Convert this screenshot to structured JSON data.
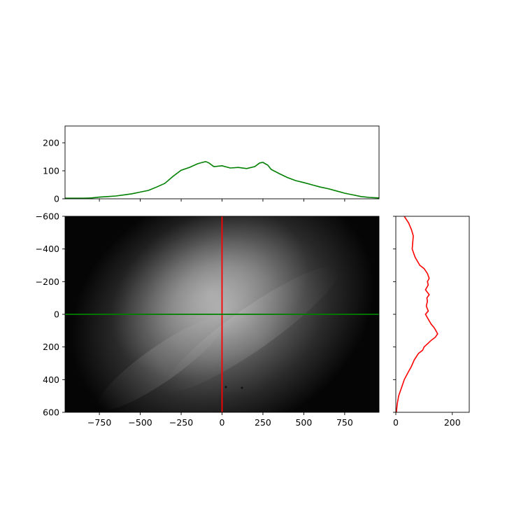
{
  "chart_data": [
    {
      "panel": "top-profile",
      "type": "line",
      "color": "#008000",
      "xlim": [
        -960,
        960
      ],
      "ylim": [
        0,
        260
      ],
      "yticks": [
        0,
        100,
        200
      ],
      "ytick_labels": [
        "0",
        "100",
        "200"
      ],
      "x": [
        -960,
        -900,
        -850,
        -800,
        -750,
        -700,
        -650,
        -600,
        -550,
        -500,
        -450,
        -400,
        -350,
        -300,
        -250,
        -200,
        -150,
        -120,
        -100,
        -80,
        -50,
        0,
        50,
        100,
        150,
        200,
        230,
        250,
        280,
        300,
        350,
        400,
        450,
        500,
        550,
        600,
        650,
        700,
        750,
        800,
        850,
        900,
        960
      ],
      "y": [
        2,
        2,
        2,
        3,
        6,
        8,
        10,
        14,
        18,
        24,
        30,
        42,
        55,
        80,
        102,
        112,
        125,
        130,
        133,
        128,
        115,
        118,
        110,
        112,
        108,
        115,
        128,
        130,
        120,
        105,
        90,
        76,
        65,
        58,
        50,
        42,
        36,
        28,
        20,
        14,
        8,
        5,
        3
      ]
    },
    {
      "panel": "image",
      "type": "heatmap",
      "colormap": "gray",
      "xlim": [
        -960,
        960
      ],
      "ylim": [
        600,
        -600
      ],
      "xticks": [
        -750,
        -500,
        -250,
        0,
        250,
        500,
        750
      ],
      "xtick_labels": [
        "−750",
        "−500",
        "−250",
        "0",
        "250",
        "500",
        "750"
      ],
      "yticks": [
        -600,
        -400,
        -200,
        0,
        200,
        400,
        600
      ],
      "ytick_labels": [
        "−600",
        "−400",
        "−200",
        "0",
        "200",
        "400",
        "600"
      ],
      "vline": {
        "x": 0,
        "color": "#ff0000"
      },
      "hline": {
        "y": 0,
        "color": "#008000"
      }
    },
    {
      "panel": "right-profile",
      "type": "line",
      "color": "#ff0000",
      "xlim": [
        0,
        260
      ],
      "ylim": [
        600,
        -600
      ],
      "xticks": [
        0,
        200
      ],
      "xtick_labels": [
        "0",
        "200"
      ],
      "y": [
        -600,
        -560,
        -520,
        -480,
        -440,
        -400,
        -350,
        -300,
        -280,
        -250,
        -220,
        -200,
        -180,
        -150,
        -120,
        -100,
        -80,
        -50,
        -20,
        0,
        30,
        60,
        80,
        100,
        120,
        140,
        160,
        200,
        220,
        240,
        280,
        320,
        360,
        400,
        450,
        500,
        550,
        600
      ],
      "x": [
        30,
        45,
        55,
        62,
        60,
        58,
        68,
        85,
        100,
        112,
        118,
        112,
        115,
        105,
        118,
        110,
        112,
        108,
        115,
        105,
        115,
        125,
        135,
        142,
        148,
        140,
        125,
        100,
        95,
        80,
        65,
        55,
        42,
        30,
        20,
        10,
        5,
        2
      ]
    }
  ]
}
